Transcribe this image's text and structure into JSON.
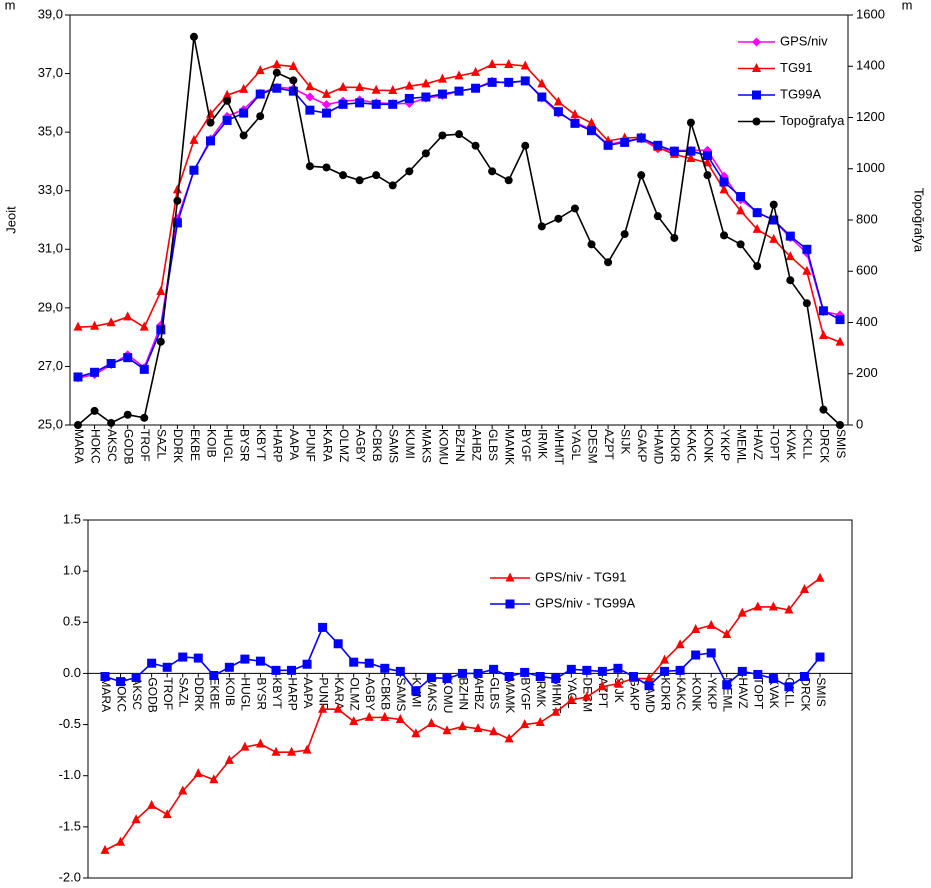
{
  "chart_data": [
    {
      "type": "line",
      "ylabel": "Jeoit",
      "y2label": "Topoğrafya",
      "yunit": "m",
      "y2unit": "m",
      "categories": [
        "MARA",
        "HOKC",
        "AKSC",
        "GODB",
        "TROF",
        "SAZL",
        "DDRK",
        "EKBE",
        "KOIB",
        "HUGL",
        "BYSR",
        "KBYT",
        "HARP",
        "AAPA",
        "PUNF",
        "KARA",
        "OLMZ",
        "AGBY",
        "CBKB",
        "SAMS",
        "KUMI",
        "MAKS",
        "KOMU",
        "BZHN",
        "AHBZ",
        "GLBS",
        "MAMK",
        "BYGF",
        "IRMK",
        "MHMT",
        "YAGL",
        "DESM",
        "AZPT",
        "SIJK",
        "GAKP",
        "HAMD",
        "KDKR",
        "KAKC",
        "KONK",
        "YKKP",
        "MEML",
        "HAVZ",
        "TOPT",
        "KVAK",
        "CKLL",
        "DRCK",
        "SMIS"
      ],
      "ylim": [
        25,
        39
      ],
      "yticks": [
        {
          "value": 25,
          "label": "25,0"
        },
        {
          "value": 27,
          "label": "27,0"
        },
        {
          "value": 29,
          "label": "29,0"
        },
        {
          "value": 31,
          "label": "31,0"
        },
        {
          "value": 33,
          "label": "33,0"
        },
        {
          "value": 35,
          "label": "35,0"
        },
        {
          "value": 37,
          "label": "37,0"
        },
        {
          "value": 39,
          "label": "39,0"
        }
      ],
      "y2lim": [
        0,
        1600
      ],
      "y2ticks": [
        0,
        200,
        400,
        600,
        800,
        1000,
        1200,
        1400,
        1600
      ],
      "series": [
        {
          "name": "GPS/niv",
          "color": "#ff00ff",
          "marker": "diamond",
          "values": [
            26.61,
            26.72,
            27.06,
            27.4,
            26.96,
            28.41,
            32.05,
            33.68,
            34.76,
            35.54,
            35.77,
            36.33,
            36.53,
            36.49,
            36.2,
            35.94,
            36.06,
            36.1,
            36.0,
            35.97,
            35.98,
            36.16,
            36.25,
            36.4,
            36.5,
            36.74,
            36.67,
            36.76,
            36.17,
            35.65,
            35.34,
            35.08,
            34.57,
            34.7,
            34.77,
            34.43,
            34.37,
            34.38,
            34.38,
            33.5,
            32.69,
            32.27,
            31.99,
            31.4,
            30.87,
            28.87,
            28.76
          ]
        },
        {
          "name": "TG91",
          "color": "#ff0000",
          "marker": "triangle",
          "values": [
            28.34,
            28.37,
            28.49,
            28.69,
            28.34,
            29.56,
            33.03,
            34.72,
            35.61,
            36.26,
            36.46,
            37.1,
            37.3,
            37.24,
            36.55,
            36.29,
            36.53,
            36.53,
            36.43,
            36.42,
            36.57,
            36.65,
            36.81,
            36.92,
            37.04,
            37.31,
            37.31,
            37.26,
            36.65,
            36.03,
            35.6,
            35.31,
            34.7,
            34.8,
            34.82,
            34.48,
            34.24,
            34.1,
            33.95,
            33.03,
            32.31,
            31.68,
            31.34,
            30.75,
            30.25,
            28.05,
            27.83
          ]
        },
        {
          "name": "TG99A",
          "color": "#0000ff",
          "marker": "square",
          "values": [
            26.64,
            26.8,
            27.1,
            27.3,
            26.9,
            28.25,
            31.9,
            33.7,
            34.7,
            35.4,
            35.65,
            36.3,
            36.5,
            36.4,
            35.75,
            35.65,
            35.95,
            36.0,
            35.95,
            35.95,
            36.15,
            36.2,
            36.3,
            36.4,
            36.5,
            36.7,
            36.7,
            36.75,
            36.2,
            35.7,
            35.3,
            35.05,
            34.55,
            34.65,
            34.8,
            34.55,
            34.35,
            34.35,
            34.2,
            33.3,
            32.8,
            32.25,
            32.0,
            31.45,
            31.0,
            28.9,
            28.6
          ]
        },
        {
          "name": "Topoğrafya",
          "color": "#000000",
          "marker": "circle",
          "axis": "y2",
          "values": [
            0,
            55,
            8,
            40,
            28,
            325,
            875,
            1515,
            1180,
            1265,
            1130,
            1205,
            1375,
            1345,
            1010,
            1005,
            975,
            955,
            975,
            935,
            990,
            1060,
            1130,
            1135,
            1090,
            990,
            955,
            1090,
            775,
            805,
            845,
            705,
            635,
            745,
            975,
            815,
            730,
            1180,
            975,
            740,
            705,
            620,
            860,
            565,
            475,
            60,
            0
          ]
        }
      ]
    },
    {
      "type": "line",
      "categories": [
        "MARA",
        "HOKC",
        "AKSC",
        "GODB",
        "TROF",
        "SAZL",
        "DDRK",
        "EKBE",
        "KOIB",
        "HUGL",
        "BYSR",
        "KBYT",
        "HARP",
        "AAPA",
        "PUNF",
        "KARA",
        "OLMZ",
        "AGBY",
        "CBKB",
        "SAMS",
        "KUMI",
        "MAKS",
        "KOMU",
        "BZHN",
        "AHBZ",
        "GLBS",
        "MAMK",
        "BYGF",
        "IRMK",
        "MHMT",
        "YAGL",
        "DESM",
        "AZPT",
        "SIJK",
        "GAKP",
        "HAMD",
        "KDKR",
        "KAKC",
        "KONK",
        "YKKP",
        "MEML",
        "HAVZ",
        "TOPT",
        "KVAK",
        "CKLL",
        "DRCK",
        "SMIS"
      ],
      "ylim": [
        -2,
        1.5
      ],
      "yticks": [
        {
          "value": -2,
          "label": "-2.0"
        },
        -1.5,
        {
          "value": -1,
          "label": "-1.0"
        },
        -0.5,
        {
          "value": 0,
          "label": "0.0"
        },
        0.5,
        {
          "value": 1,
          "label": "1.0"
        },
        1.5
      ],
      "series": [
        {
          "name": "GPS/niv - TG91",
          "color": "#ff0000",
          "marker": "triangle",
          "values": [
            -1.73,
            -1.65,
            -1.43,
            -1.29,
            -1.38,
            -1.15,
            -0.98,
            -1.04,
            -0.85,
            -0.72,
            -0.69,
            -0.77,
            -0.77,
            -0.75,
            -0.35,
            -0.35,
            -0.47,
            -0.43,
            -0.43,
            -0.45,
            -0.59,
            -0.49,
            -0.56,
            -0.52,
            -0.54,
            -0.57,
            -0.64,
            -0.5,
            -0.48,
            -0.38,
            -0.26,
            -0.23,
            -0.13,
            -0.1,
            -0.05,
            -0.05,
            0.13,
            0.28,
            0.43,
            0.47,
            0.38,
            0.59,
            0.65,
            0.65,
            0.62,
            0.82,
            0.93
          ]
        },
        {
          "name": "GPS/niv - TG99A",
          "color": "#0000ff",
          "marker": "square",
          "values": [
            -0.03,
            -0.08,
            -0.04,
            0.1,
            0.06,
            0.16,
            0.15,
            -0.02,
            0.06,
            0.14,
            0.12,
            0.03,
            0.03,
            0.09,
            0.45,
            0.29,
            0.11,
            0.1,
            0.05,
            0.02,
            -0.17,
            -0.04,
            -0.05,
            0.0,
            0.0,
            0.04,
            -0.03,
            0.01,
            -0.03,
            -0.05,
            0.04,
            0.03,
            0.02,
            0.05,
            -0.03,
            -0.12,
            0.02,
            0.03,
            0.18,
            0.2,
            -0.11,
            0.02,
            -0.01,
            -0.05,
            -0.13,
            -0.03,
            0.16
          ]
        }
      ]
    }
  ]
}
